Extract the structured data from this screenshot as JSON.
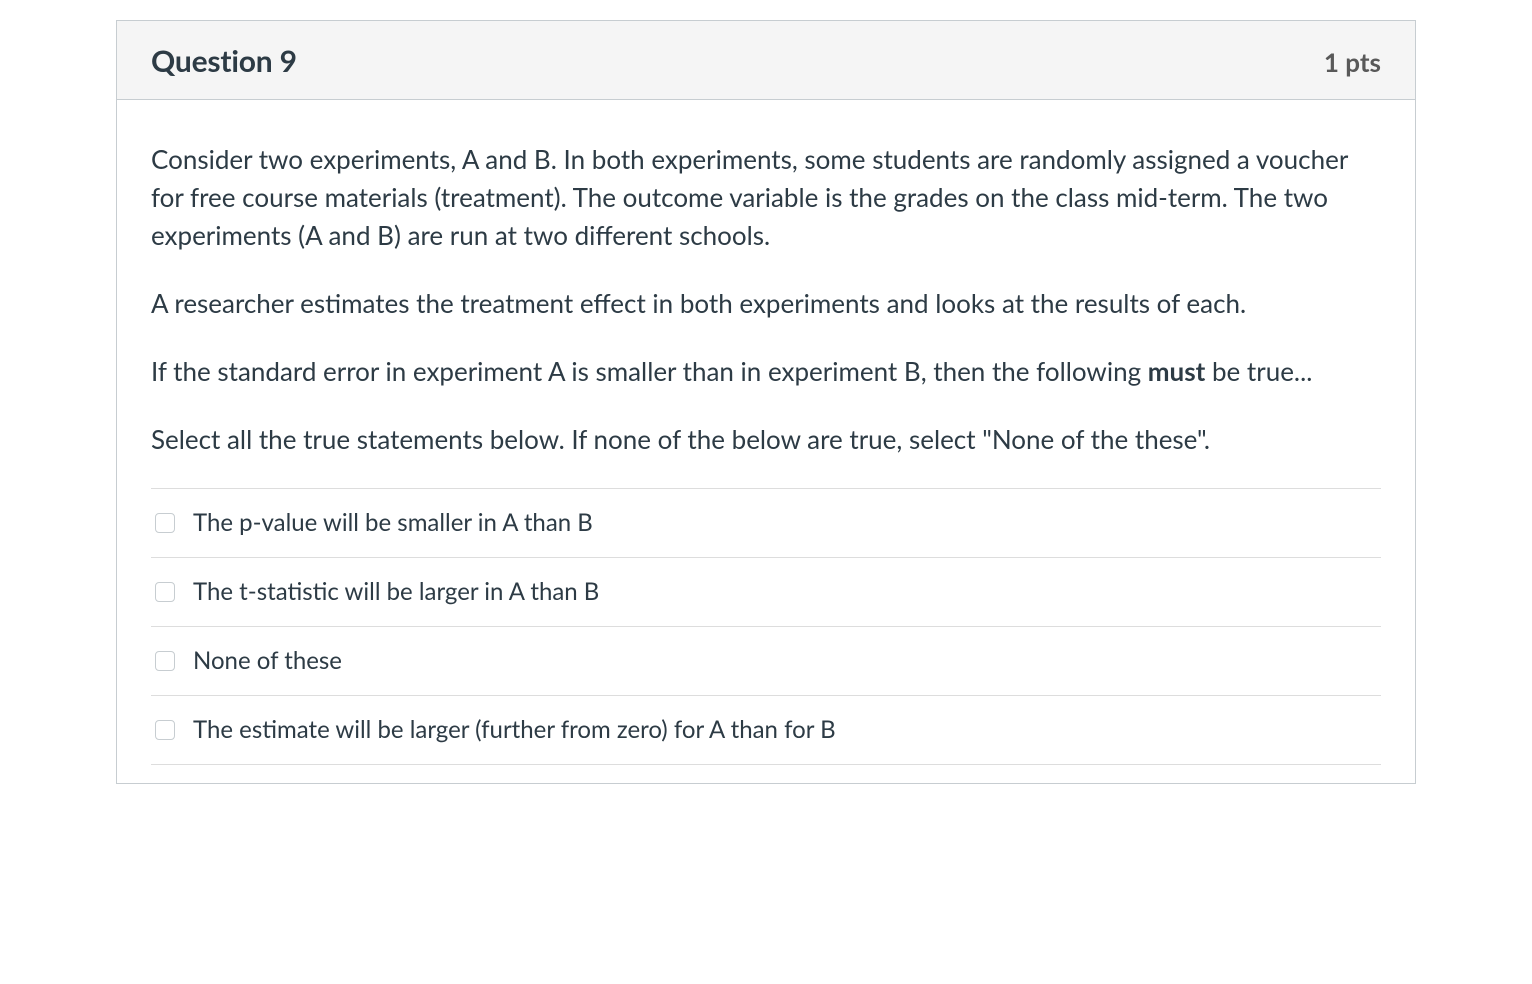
{
  "question": {
    "title": "Question 9",
    "points": "1 pts",
    "prompt_paragraphs": [
      "Consider two experiments, A and B. In both experiments, some students are randomly assigned a voucher for free course materials (treatment). The outcome variable is the grades on the class mid-term. The two experiments (A and B) are run at two different schools.",
      "A researcher estimates the treatment effect in both experiments and looks at the results of each.",
      "If the standard error in experiment A is smaller than in experiment B, then the following <strong>must</strong> be true...",
      "Select all the true statements below. If none of the below are true, select \"None of the these\"."
    ],
    "answers": [
      "The p-value will be smaller in A than B",
      "The t-statistic will be larger in A than B",
      "None of these",
      "The estimate will be larger (further from zero) for A than for B"
    ]
  },
  "colors": {
    "card_border": "#c7cdd1",
    "header_bg": "#f5f5f5",
    "title_text": "#2d3b45",
    "points_text": "#595959",
    "body_text": "#2d3b45",
    "divider": "#dddddd"
  }
}
